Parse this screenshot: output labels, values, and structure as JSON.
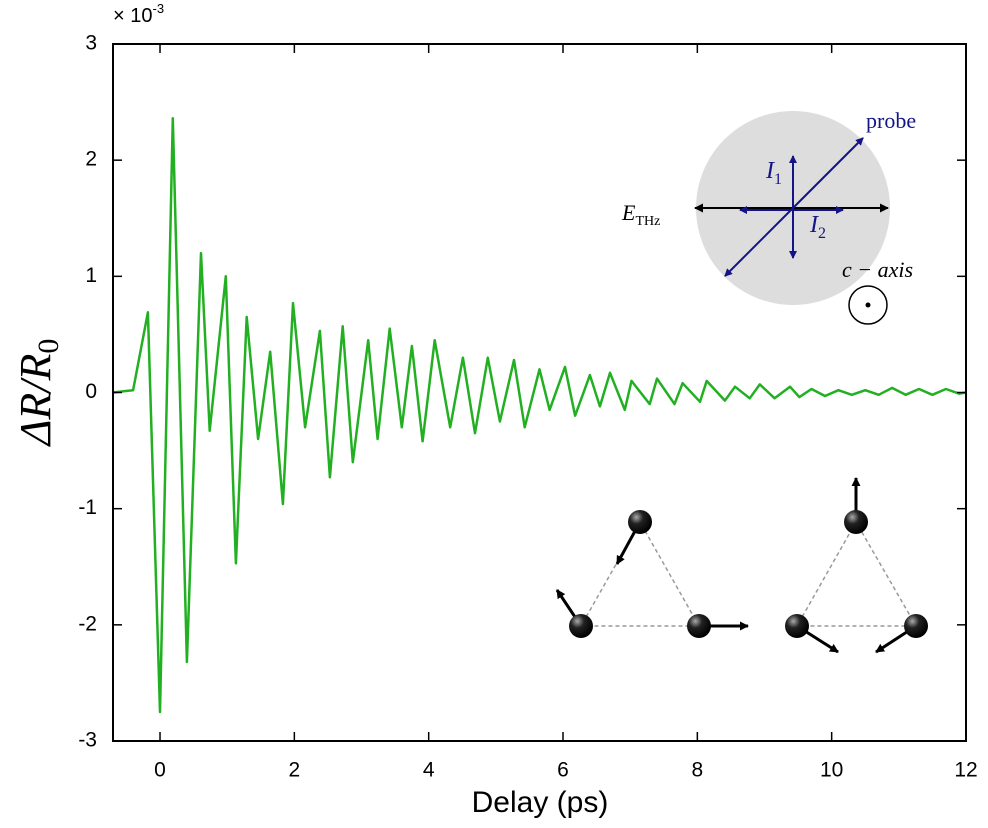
{
  "chart_data": {
    "type": "line",
    "x_label": "Delay (ps)",
    "y_label": {
      "text": "ΔR/R",
      "sub": "0"
    },
    "y_multiplier": {
      "base": "× 10",
      "exponent": "-3"
    },
    "color": "#22b022",
    "xlim": [
      -0.7,
      12
    ],
    "ylim": [
      -3,
      3
    ],
    "xticks": [
      0,
      2,
      4,
      6,
      8,
      10,
      12
    ],
    "yticks": [
      -3,
      -2,
      -1,
      0,
      1,
      2,
      3
    ],
    "x": [
      -0.7,
      -0.4,
      -0.18,
      0,
      0.19,
      0.4,
      0.61,
      0.74,
      0.98,
      1.13,
      1.29,
      1.46,
      1.64,
      1.83,
      1.98,
      2.16,
      2.38,
      2.53,
      2.72,
      2.87,
      3.1,
      3.24,
      3.42,
      3.6,
      3.75,
      3.91,
      4.09,
      4.32,
      4.51,
      4.69,
      4.88,
      5.06,
      5.27,
      5.43,
      5.65,
      5.8,
      6.03,
      6.18,
      6.4,
      6.55,
      6.7,
      6.92,
      7.02,
      7.29,
      7.4,
      7.66,
      7.78,
      8.04,
      8.14,
      8.41,
      8.56,
      8.78,
      8.93,
      9.15,
      9.38,
      9.52,
      9.7,
      9.9,
      10.1,
      10.3,
      10.5,
      10.7,
      10.9,
      11.1,
      11.3,
      11.5,
      11.7,
      11.9,
      12
    ],
    "values": [
      0,
      0.02,
      0.69,
      -2.75,
      2.36,
      -2.32,
      1.2,
      -0.33,
      1.0,
      -1.47,
      0.65,
      -0.4,
      0.35,
      -0.96,
      0.77,
      -0.3,
      0.53,
      -0.73,
      0.57,
      -0.6,
      0.45,
      -0.4,
      0.55,
      -0.3,
      0.4,
      -0.42,
      0.45,
      -0.3,
      0.3,
      -0.35,
      0.3,
      -0.25,
      0.28,
      -0.3,
      0.2,
      -0.15,
      0.22,
      -0.2,
      0.15,
      -0.12,
      0.17,
      -0.15,
      0.1,
      -0.1,
      0.12,
      -0.1,
      0.08,
      -0.08,
      0.1,
      -0.07,
      0.05,
      -0.05,
      0.07,
      -0.05,
      0.05,
      -0.04,
      0.03,
      -0.03,
      0.02,
      -0.02,
      0.02,
      -0.02,
      0.04,
      -0.02,
      0.03,
      -0.02,
      0.03,
      -0.01,
      0
    ],
    "inset": {
      "probe": "probe",
      "i1": {
        "text": "I",
        "sub": "1"
      },
      "i2": {
        "text": "I",
        "sub": "2"
      },
      "e_thz": {
        "text": "E",
        "sub": "THz"
      },
      "c_axis": "c − axis"
    }
  }
}
